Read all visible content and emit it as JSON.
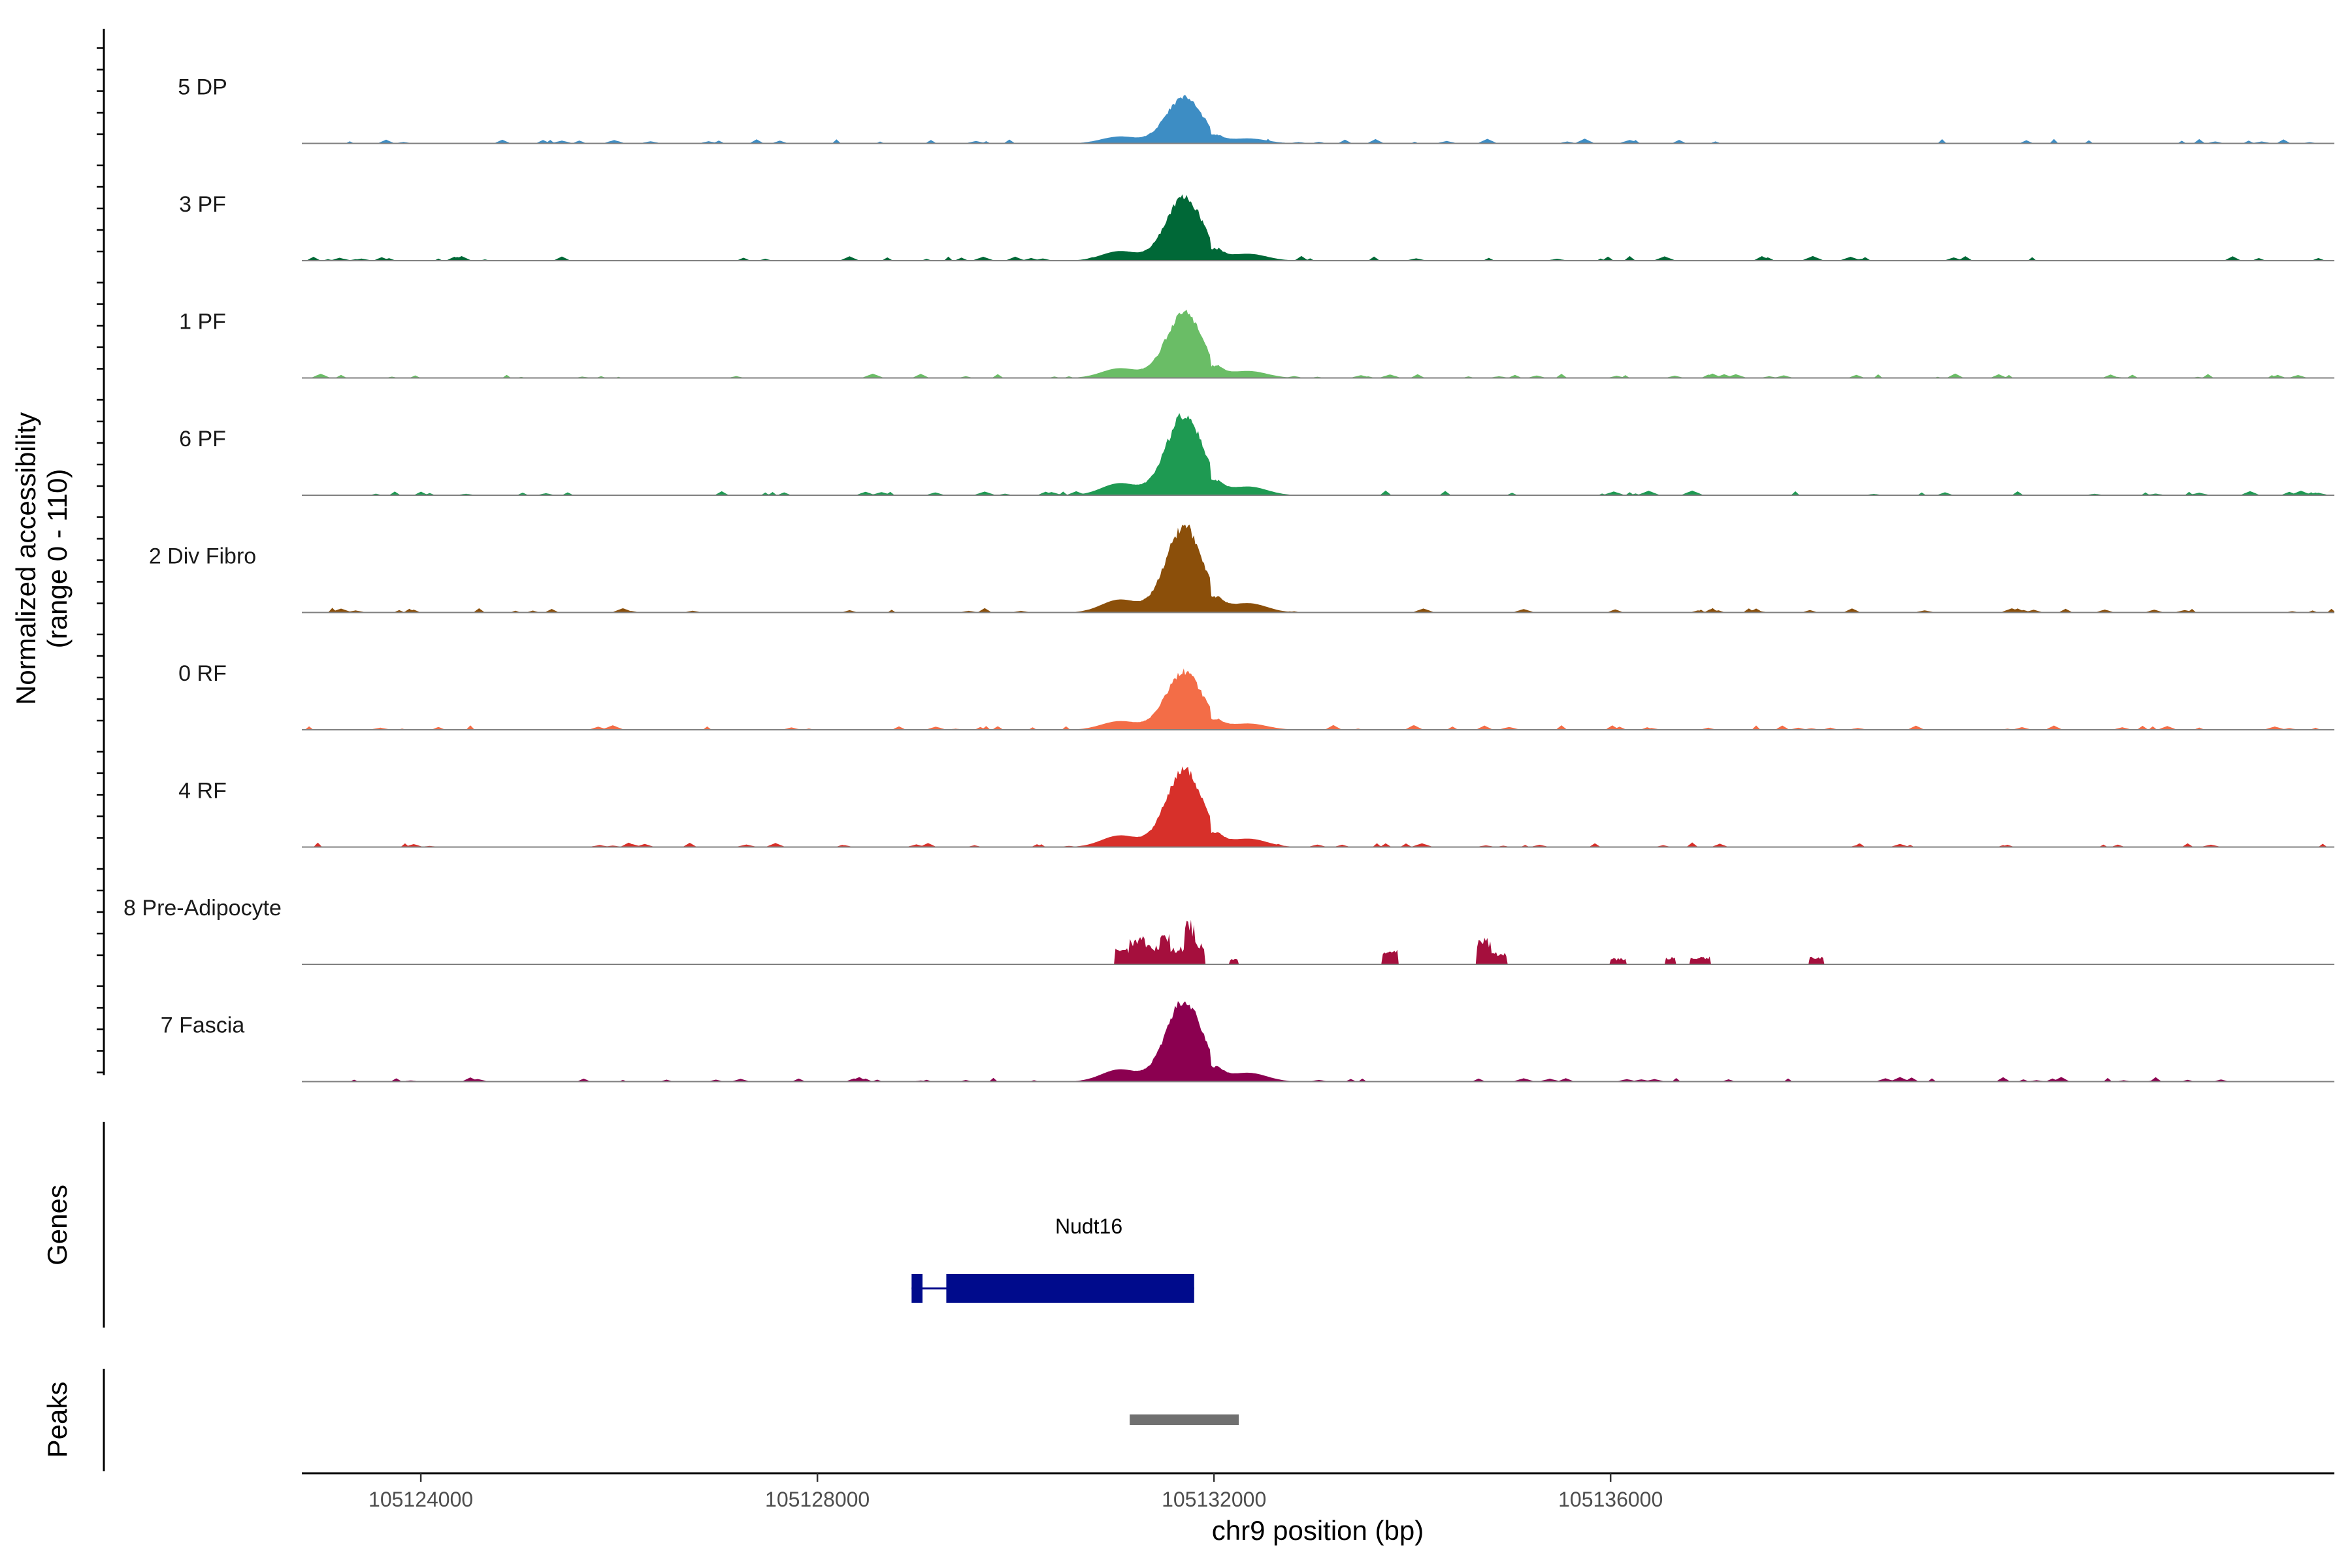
{
  "chart_data": {
    "type": "area",
    "title": "",
    "y_axis": {
      "label_line1": "Normalized accessibility",
      "label_line2": "(range 0 - 110)",
      "range": [
        0,
        110
      ]
    },
    "x_axis": {
      "label": "chr9 position (bp)",
      "range": [
        105122800,
        105143300
      ],
      "ticks": [
        105124000,
        105128000,
        105132000,
        105136000
      ],
      "tick_labels": [
        "105124000",
        "105128000",
        "105132000",
        "105136000"
      ]
    },
    "main_peak": {
      "center": 105131700,
      "start": 105131200,
      "end": 105132250
    },
    "series": [
      {
        "name": "5 DP",
        "color": "#3D8DC4",
        "peak_height": 47,
        "style": "broad"
      },
      {
        "name": "3 PF",
        "color": "#006837",
        "peak_height": 65,
        "style": "broad"
      },
      {
        "name": "1 PF",
        "color": "#6ABD66",
        "peak_height": 66,
        "style": "broad"
      },
      {
        "name": "6 PF",
        "color": "#1E9A52",
        "peak_height": 82,
        "style": "broad"
      },
      {
        "name": "2 Div Fibro",
        "color": "#8B4F0A",
        "peak_height": 88,
        "style": "broad"
      },
      {
        "name": "0 RF",
        "color": "#F36D47",
        "peak_height": 59,
        "style": "broad"
      },
      {
        "name": "4 RF",
        "color": "#D7302A",
        "peak_height": 79,
        "style": "broad"
      },
      {
        "name": "8 Pre-Adipocyte",
        "color": "#A50F3D",
        "peak_height": 41,
        "style": "spiky"
      },
      {
        "name": "7 Fascia",
        "color": "#8B0050",
        "peak_height": 83,
        "style": "broad"
      }
    ],
    "genes_track": {
      "label": "Genes",
      "genes": [
        {
          "name": "Nudt16",
          "start": 105128950,
          "end": 105131800,
          "color": "#000B8C",
          "exons": [
            [
              105128950,
              105129060
            ],
            [
              105129300,
              105131800
            ]
          ]
        }
      ]
    },
    "peaks_track": {
      "label": "Peaks",
      "peaks": [
        {
          "start": 105131150,
          "end": 105132250,
          "color": "#707070"
        }
      ]
    }
  }
}
